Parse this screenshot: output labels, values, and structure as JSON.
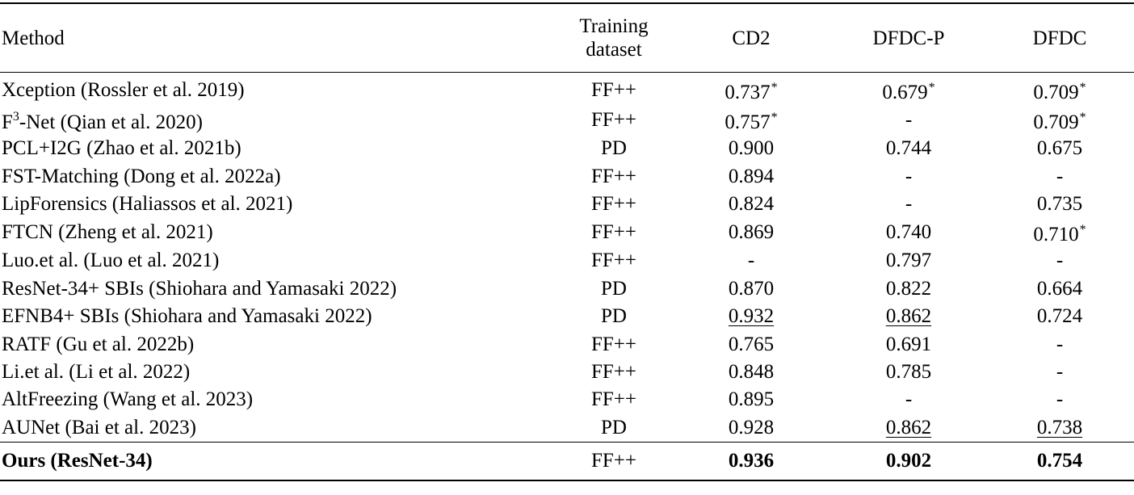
{
  "table": {
    "headers": {
      "method": "Method",
      "training_line1": "Training",
      "training_line2": "dataset",
      "cd2": "CD2",
      "dfdcp": "DFDC-P",
      "dfdc": "DFDC"
    },
    "rows": [
      {
        "method": "Xception (Rossler et al. 2019)",
        "train": "FF++",
        "cd2": "0.737",
        "dfdcp": "0.679",
        "dfdc": "0.709",
        "star": "*"
      },
      {
        "method_prefix": "F",
        "method_sup": "3",
        "method_suffix": "-Net (Qian et al. 2020)",
        "train": "FF++",
        "cd2": "0.757",
        "dfdcp": "-",
        "dfdc": "0.709",
        "star": "*"
      },
      {
        "method": "PCL+I2G (Zhao et al. 2021b)",
        "train": "PD",
        "cd2": "0.900",
        "dfdcp": "0.744",
        "dfdc": "0.675"
      },
      {
        "method": "FST-Matching (Dong et al. 2022a)",
        "train": "FF++",
        "cd2": "0.894",
        "dfdcp": "-",
        "dfdc": "-"
      },
      {
        "method": "LipForensics (Haliassos et al. 2021)",
        "train": "FF++",
        "cd2": "0.824",
        "dfdcp": "-",
        "dfdc": "0.735"
      },
      {
        "method": "FTCN (Zheng et al. 2021)",
        "train": "FF++",
        "cd2": "0.869",
        "dfdcp": "0.740",
        "dfdc": "0.710",
        "star": "*"
      },
      {
        "method": "Luo.et al. (Luo et al. 2021)",
        "train": "FF++",
        "cd2": "-",
        "dfdcp": "0.797",
        "dfdc": "-"
      },
      {
        "method": "ResNet-34+ SBIs (Shiohara and Yamasaki 2022)",
        "train": "PD",
        "cd2": "0.870",
        "dfdcp": "0.822",
        "dfdc": "0.664"
      },
      {
        "method": "EFNB4+ SBIs (Shiohara and Yamasaki 2022)",
        "train": "PD",
        "cd2": "0.932",
        "dfdcp": "0.862",
        "dfdc": "0.724"
      },
      {
        "method": "RATF (Gu et al. 2022b)",
        "train": "FF++",
        "cd2": "0.765",
        "dfdcp": "0.691",
        "dfdc": "-"
      },
      {
        "method": "Li.et al. (Li et al. 2022)",
        "train": "FF++",
        "cd2": "0.848",
        "dfdcp": "0.785",
        "dfdc": "-"
      },
      {
        "method": "AltFreezing (Wang et al. 2023)",
        "train": "FF++",
        "cd2": "0.895",
        "dfdcp": "-",
        "dfdc": "-"
      },
      {
        "method": "AUNet (Bai et al. 2023)",
        "train": "PD",
        "cd2": "0.928",
        "dfdcp": "0.862",
        "dfdc": "0.738"
      }
    ],
    "ours": {
      "method": "Ours (ResNet-34)",
      "train": "FF++",
      "cd2": "0.936",
      "dfdcp": "0.902",
      "dfdc": "0.754"
    }
  }
}
